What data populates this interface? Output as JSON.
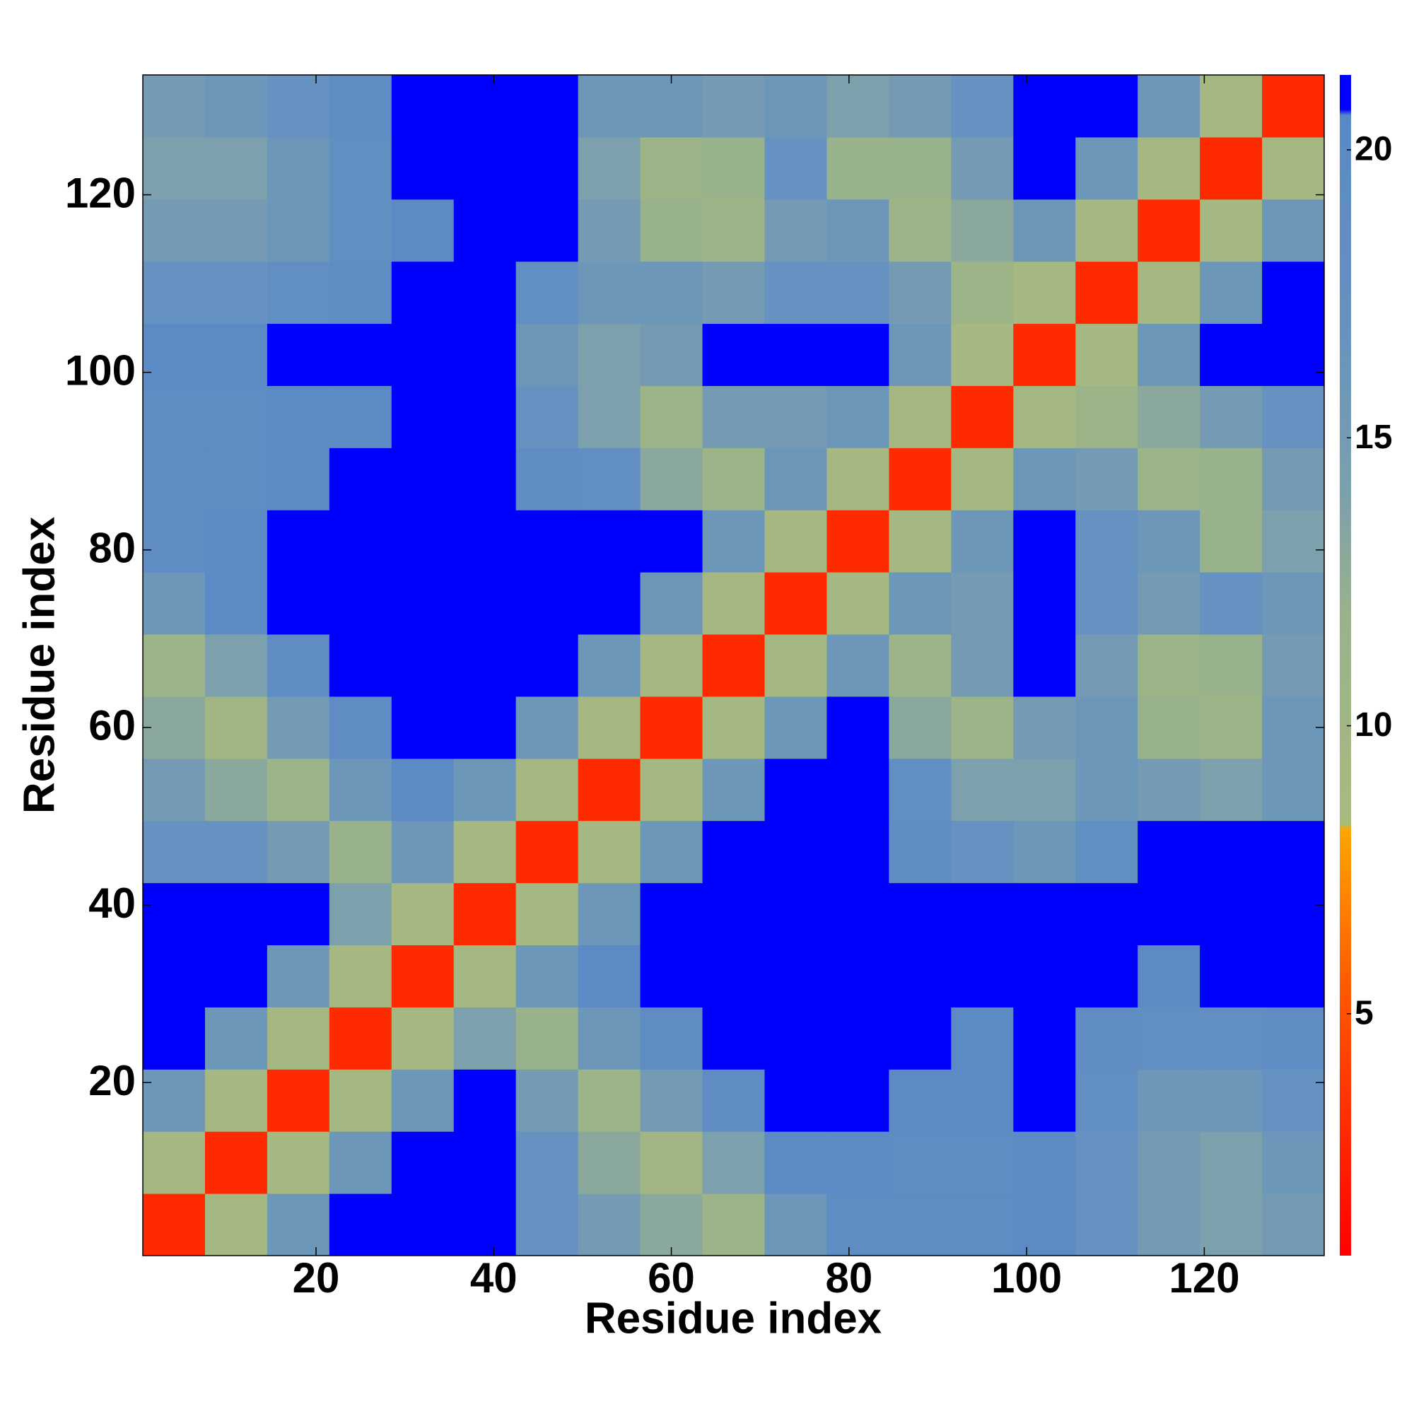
{
  "chart_data": {
    "type": "heatmap",
    "x_label": "Residue index",
    "y_label": "Residue index",
    "x_edges": [
      0.5,
      7.5,
      14.5,
      21.5,
      28.5,
      35.5,
      42.5,
      49.5,
      56.5,
      63.5,
      70.5,
      77.5,
      84.5,
      91.5,
      98.5,
      105.5,
      112.5,
      119.5,
      126.5,
      133.5
    ],
    "y_edges": [
      0.5,
      7.5,
      14.5,
      21.5,
      28.5,
      35.5,
      42.5,
      49.5,
      56.5,
      63.5,
      70.5,
      77.5,
      84.5,
      91.5,
      98.5,
      105.5,
      112.5,
      119.5,
      126.5,
      133.5
    ],
    "z": [
      [
        3,
        9,
        16,
        21,
        21,
        21,
        17,
        15,
        13,
        11,
        16,
        19,
        19,
        19,
        20,
        17,
        15,
        14,
        15
      ],
      [
        9,
        3,
        9,
        16,
        21,
        21,
        17,
        13,
        10,
        14,
        20,
        20,
        19,
        19,
        20,
        17,
        15,
        14,
        16
      ],
      [
        16,
        9,
        3,
        9,
        16,
        21,
        15,
        11,
        15,
        19,
        21,
        21,
        20,
        20,
        21,
        18,
        16,
        16,
        17
      ],
      [
        21,
        16,
        9,
        3,
        9,
        14,
        12,
        16,
        19,
        21,
        21,
        21,
        21,
        20,
        21,
        19,
        18,
        18,
        19
      ],
      [
        21,
        21,
        16,
        9,
        3,
        9,
        16,
        20,
        21,
        21,
        21,
        21,
        21,
        21,
        21,
        21,
        20,
        21,
        21
      ],
      [
        21,
        21,
        21,
        14,
        9,
        3,
        9,
        16,
        21,
        21,
        21,
        21,
        21,
        21,
        21,
        21,
        21,
        21,
        21
      ],
      [
        17,
        17,
        15,
        12,
        16,
        9,
        3,
        9,
        16,
        21,
        21,
        21,
        19,
        17,
        16,
        18,
        21,
        21,
        21
      ],
      [
        15,
        13,
        11,
        16,
        20,
        16,
        9,
        3,
        9,
        16,
        21,
        21,
        18,
        14,
        14,
        16,
        15,
        14,
        16
      ],
      [
        13,
        10,
        15,
        19,
        21,
        21,
        16,
        9,
        3,
        9,
        16,
        21,
        13,
        11,
        15,
        16,
        12,
        11,
        16
      ],
      [
        11,
        14,
        19,
        21,
        21,
        21,
        21,
        16,
        9,
        3,
        9,
        16,
        11,
        15,
        21,
        15,
        11,
        12,
        15
      ],
      [
        16,
        20,
        21,
        21,
        21,
        21,
        21,
        21,
        16,
        9,
        3,
        9,
        16,
        15,
        21,
        17,
        15,
        17,
        16
      ],
      [
        19,
        20,
        21,
        21,
        21,
        21,
        21,
        21,
        21,
        16,
        9,
        3,
        9,
        16,
        21,
        17,
        16,
        12,
        14
      ],
      [
        19,
        19,
        20,
        21,
        21,
        21,
        19,
        18,
        13,
        11,
        16,
        9,
        3,
        9,
        16,
        15,
        11,
        12,
        15
      ],
      [
        19,
        19,
        20,
        20,
        21,
        21,
        17,
        14,
        11,
        15,
        15,
        16,
        9,
        3,
        9,
        11,
        13,
        15,
        17
      ],
      [
        20,
        20,
        21,
        21,
        21,
        21,
        16,
        14,
        15,
        21,
        21,
        21,
        16,
        9,
        3,
        9,
        16,
        21,
        21
      ],
      [
        17,
        17,
        18,
        19,
        21,
        21,
        18,
        16,
        16,
        15,
        17,
        17,
        15,
        11,
        9,
        3,
        9,
        16,
        21
      ],
      [
        15,
        15,
        16,
        18,
        20,
        21,
        21,
        15,
        12,
        11,
        15,
        16,
        11,
        13,
        16,
        9,
        3,
        9,
        16
      ],
      [
        14,
        14,
        16,
        18,
        21,
        21,
        21,
        14,
        11,
        12,
        17,
        12,
        12,
        15,
        21,
        16,
        9,
        3,
        9
      ],
      [
        15,
        16,
        17,
        19,
        21,
        21,
        21,
        16,
        16,
        15,
        16,
        14,
        15,
        17,
        21,
        21,
        16,
        9,
        3
      ]
    ],
    "xlim": [
      0.5,
      133.5
    ],
    "ylim": [
      0.5,
      133.5
    ],
    "xticks": [
      20,
      40,
      60,
      80,
      100,
      120
    ],
    "yticks": [
      20,
      40,
      60,
      80,
      100,
      120
    ],
    "clim": [
      0.8,
      21.3
    ],
    "cticks": [
      5,
      10,
      15,
      20
    ],
    "colorscale": [
      {
        "value": 0.8,
        "color": "#ff0000"
      },
      {
        "value": 3,
        "color": "#ff2a00"
      },
      {
        "value": 5.5,
        "color": "#ff5a00"
      },
      {
        "value": 8.2,
        "color": "#ffa500"
      },
      {
        "value": 8.3,
        "color": "#a8ba7e"
      },
      {
        "value": 12,
        "color": "#98b28c"
      },
      {
        "value": 14,
        "color": "#7ca0ac"
      },
      {
        "value": 17,
        "color": "#6592c0"
      },
      {
        "value": 20.6,
        "color": "#5a88c6"
      },
      {
        "value": 20.7,
        "color": "#0000ff"
      },
      {
        "value": 21.3,
        "color": "#0000ff"
      }
    ]
  }
}
